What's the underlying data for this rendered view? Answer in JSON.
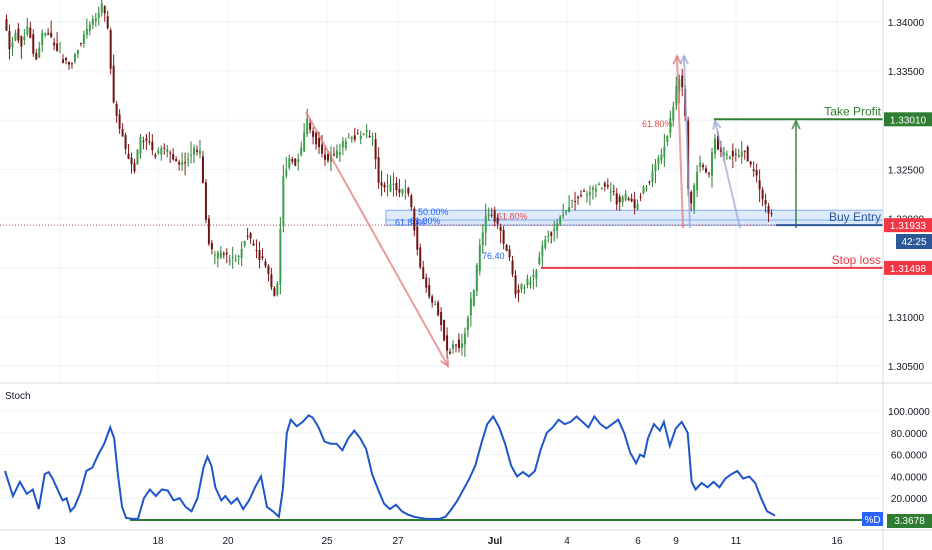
{
  "chart_data": [
    {
      "type": "candlestick",
      "title": "",
      "ylim": [
        1.3033,
        1.3458
      ],
      "y_ticks": [
        "1.30500",
        "1.31000",
        "1.31500",
        "1.32000",
        "1.32500",
        "1.33000",
        "1.33500",
        "1.34000"
      ],
      "x_ticks": [
        "13",
        "18",
        "20",
        "25",
        "27",
        "Jul",
        "4",
        "6",
        "9",
        "11",
        "16"
      ],
      "price_path": [
        [
          0,
          1.3405
        ],
        [
          6,
          1.3372
        ],
        [
          12,
          1.3392
        ],
        [
          18,
          1.3378
        ],
        [
          25,
          1.3395
        ],
        [
          32,
          1.3362
        ],
        [
          40,
          1.339
        ],
        [
          50,
          1.338
        ],
        [
          60,
          1.336
        ],
        [
          68,
          1.3355
        ],
        [
          75,
          1.3375
        ],
        [
          85,
          1.3395
        ],
        [
          92,
          1.3405
        ],
        [
          100,
          1.342
        ],
        [
          106,
          1.3388
        ],
        [
          110,
          1.332
        ],
        [
          118,
          1.329
        ],
        [
          125,
          1.326
        ],
        [
          132,
          1.3252
        ],
        [
          138,
          1.3282
        ],
        [
          145,
          1.3278
        ],
        [
          152,
          1.3265
        ],
        [
          160,
          1.3272
        ],
        [
          168,
          1.3268
        ],
        [
          176,
          1.3252
        ],
        [
          184,
          1.3258
        ],
        [
          192,
          1.327
        ],
        [
          198,
          1.3265
        ],
        [
          202,
          1.3225
        ],
        [
          206,
          1.3175
        ],
        [
          212,
          1.316
        ],
        [
          220,
          1.3165
        ],
        [
          228,
          1.3158
        ],
        [
          236,
          1.316
        ],
        [
          245,
          1.3185
        ],
        [
          255,
          1.3165
        ],
        [
          265,
          1.315
        ],
        [
          275,
          1.3115
        ],
        [
          278,
          1.3175
        ],
        [
          282,
          1.3245
        ],
        [
          288,
          1.326
        ],
        [
          295,
          1.3255
        ],
        [
          300,
          1.327
        ],
        [
          306,
          1.33
        ],
        [
          312,
          1.3285
        ],
        [
          318,
          1.3272
        ],
        [
          326,
          1.326
        ],
        [
          334,
          1.3265
        ],
        [
          342,
          1.3275
        ],
        [
          350,
          1.3285
        ],
        [
          358,
          1.3282
        ],
        [
          366,
          1.3288
        ],
        [
          372,
          1.328
        ],
        [
          378,
          1.324
        ],
        [
          385,
          1.3228
        ],
        [
          392,
          1.3235
        ],
        [
          400,
          1.3225
        ],
        [
          406,
          1.323
        ],
        [
          412,
          1.3205
        ],
        [
          418,
          1.316
        ],
        [
          424,
          1.3135
        ],
        [
          430,
          1.3118
        ],
        [
          436,
          1.311
        ],
        [
          442,
          1.309
        ],
        [
          448,
          1.306
        ],
        [
          455,
          1.3075
        ],
        [
          462,
          1.307
        ],
        [
          468,
          1.31
        ],
        [
          474,
          1.313
        ],
        [
          480,
          1.317
        ],
        [
          486,
          1.32
        ],
        [
          492,
          1.3205
        ],
        [
          498,
          1.3195
        ],
        [
          504,
          1.3175
        ],
        [
          510,
          1.316
        ],
        [
          516,
          1.3125
        ],
        [
          522,
          1.313
        ],
        [
          528,
          1.3135
        ],
        [
          534,
          1.314
        ],
        [
          540,
          1.316
        ],
        [
          546,
          1.318
        ],
        [
          552,
          1.3185
        ],
        [
          558,
          1.3195
        ],
        [
          564,
          1.3205
        ],
        [
          570,
          1.3215
        ],
        [
          576,
          1.322
        ],
        [
          582,
          1.3225
        ],
        [
          590,
          1.3228
        ],
        [
          598,
          1.3232
        ],
        [
          606,
          1.3235
        ],
        [
          614,
          1.3225
        ],
        [
          620,
          1.3215
        ],
        [
          628,
          1.3225
        ],
        [
          636,
          1.3212
        ],
        [
          644,
          1.323
        ],
        [
          652,
          1.324
        ],
        [
          658,
          1.3255
        ],
        [
          664,
          1.3268
        ],
        [
          670,
          1.329
        ],
        [
          676,
          1.332
        ],
        [
          680,
          1.3345
        ],
        [
          684,
          1.3335
        ],
        [
          688,
          1.329
        ],
        [
          691,
          1.32
        ],
        [
          696,
          1.323
        ],
        [
          700,
          1.3255
        ],
        [
          706,
          1.325
        ],
        [
          712,
          1.3245
        ],
        [
          716,
          1.3285
        ],
        [
          722,
          1.3268
        ],
        [
          728,
          1.3262
        ],
        [
          734,
          1.3268
        ],
        [
          740,
          1.3262
        ],
        [
          746,
          1.3272
        ],
        [
          752,
          1.3255
        ],
        [
          758,
          1.3245
        ],
        [
          764,
          1.3218
        ],
        [
          770,
          1.321
        ],
        [
          776,
          1.3197
        ]
      ],
      "reference_line": {
        "value": 1.31933
      },
      "zones": [
        {
          "label": "50.00%",
          "top": 1.32085,
          "bottom": 1.31933,
          "color": "#2962ff"
        },
        {
          "label": "61.80%",
          "top": 1.31985,
          "bottom": 1.31933,
          "color": "#2962ff"
        }
      ],
      "fib_labels": [
        {
          "label": "61.80%",
          "value": 1.3296,
          "color": "#e0514a"
        },
        {
          "label": "61.80%",
          "value": 1.3196,
          "color": "#2962ff"
        },
        {
          "label": "61.80%",
          "value": 1.3202,
          "color": "#e0514a"
        },
        {
          "label": "76.40",
          "value": 1.3162,
          "color": "#2962ff"
        }
      ],
      "levels": [
        {
          "name": "Take Profit",
          "value": 1.3301,
          "price_label": "1.33010",
          "color": "#2e7d32"
        },
        {
          "name": "Buy Entry",
          "value": 1.31933,
          "price_label": "1.31933",
          "color": "#2b5797"
        },
        {
          "name": "Stop loss",
          "value": 1.31498,
          "price_label": "1.31498",
          "color": "#f23645"
        }
      ],
      "countdown": "42:25"
    },
    {
      "type": "line",
      "title": "Stoch",
      "ylim": [
        0,
        100
      ],
      "y_ticks": [
        "20.0000",
        "40.0000",
        "60.0000",
        "80.0000",
        "100.0000"
      ],
      "series": [
        {
          "name": "%D",
          "color": "#1e56c8",
          "current_value": "3.3678",
          "points": [
            [
              0,
              45
            ],
            [
              8,
              22
            ],
            [
              15,
              35
            ],
            [
              22,
              24
            ],
            [
              28,
              28
            ],
            [
              34,
              10
            ],
            [
              40,
              42
            ],
            [
              44,
              44
            ],
            [
              48,
              38
            ],
            [
              52,
              30
            ],
            [
              58,
              18
            ],
            [
              62,
              20
            ],
            [
              66,
              8
            ],
            [
              70,
              12
            ],
            [
              76,
              25
            ],
            [
              82,
              45
            ],
            [
              88,
              48
            ],
            [
              94,
              60
            ],
            [
              100,
              70
            ],
            [
              106,
              85
            ],
            [
              110,
              75
            ],
            [
              114,
              40
            ],
            [
              118,
              12
            ],
            [
              122,
              2
            ],
            [
              128,
              1
            ],
            [
              134,
              1
            ],
            [
              140,
              20
            ],
            [
              146,
              28
            ],
            [
              152,
              22
            ],
            [
              158,
              28
            ],
            [
              164,
              27
            ],
            [
              170,
              18
            ],
            [
              176,
              20
            ],
            [
              182,
              12
            ],
            [
              188,
              8
            ],
            [
              194,
              20
            ],
            [
              200,
              48
            ],
            [
              204,
              58
            ],
            [
              208,
              50
            ],
            [
              212,
              30
            ],
            [
              218,
              18
            ],
            [
              222,
              22
            ],
            [
              228,
              15
            ],
            [
              234,
              20
            ],
            [
              240,
              10
            ],
            [
              246,
              18
            ],
            [
              252,
              30
            ],
            [
              258,
              40
            ],
            [
              264,
              12
            ],
            [
              270,
              8
            ],
            [
              276,
              3
            ],
            [
              280,
              28
            ],
            [
              284,
              80
            ],
            [
              288,
              92
            ],
            [
              294,
              86
            ],
            [
              300,
              90
            ],
            [
              306,
              96
            ],
            [
              310,
              94
            ],
            [
              316,
              85
            ],
            [
              322,
              72
            ],
            [
              328,
              70
            ],
            [
              334,
              70
            ],
            [
              340,
              64
            ],
            [
              346,
              75
            ],
            [
              352,
              82
            ],
            [
              358,
              75
            ],
            [
              364,
              65
            ],
            [
              370,
              42
            ],
            [
              376,
              28
            ],
            [
              382,
              15
            ],
            [
              388,
              10
            ],
            [
              394,
              14
            ],
            [
              400,
              8
            ],
            [
              406,
              5
            ],
            [
              412,
              3
            ],
            [
              418,
              2
            ],
            [
              424,
              1
            ],
            [
              430,
              1
            ],
            [
              438,
              1
            ],
            [
              444,
              3
            ],
            [
              450,
              10
            ],
            [
              456,
              18
            ],
            [
              462,
              28
            ],
            [
              468,
              38
            ],
            [
              474,
              50
            ],
            [
              480,
              70
            ],
            [
              486,
              88
            ],
            [
              492,
              95
            ],
            [
              498,
              85
            ],
            [
              504,
              70
            ],
            [
              510,
              50
            ],
            [
              516,
              40
            ],
            [
              522,
              44
            ],
            [
              528,
              40
            ],
            [
              534,
              45
            ],
            [
              540,
              65
            ],
            [
              546,
              80
            ],
            [
              552,
              85
            ],
            [
              558,
              92
            ],
            [
              564,
              88
            ],
            [
              570,
              90
            ],
            [
              576,
              95
            ],
            [
              582,
              90
            ],
            [
              588,
              85
            ],
            [
              594,
              95
            ],
            [
              600,
              88
            ],
            [
              606,
              84
            ],
            [
              612,
              88
            ],
            [
              618,
              92
            ],
            [
              624,
              80
            ],
            [
              630,
              62
            ],
            [
              636,
              52
            ],
            [
              640,
              60
            ],
            [
              644,
              58
            ],
            [
              648,
              75
            ],
            [
              654,
              88
            ],
            [
              660,
              82
            ],
            [
              664,
              90
            ],
            [
              670,
              68
            ],
            [
              676,
              84
            ],
            [
              682,
              90
            ],
            [
              688,
              80
            ],
            [
              692,
              35
            ],
            [
              696,
              28
            ],
            [
              702,
              34
            ],
            [
              708,
              30
            ],
            [
              714,
              35
            ],
            [
              720,
              30
            ],
            [
              726,
              38
            ],
            [
              732,
              42
            ],
            [
              738,
              45
            ],
            [
              744,
              38
            ],
            [
              750,
              40
            ],
            [
              756,
              34
            ],
            [
              762,
              20
            ],
            [
              768,
              8
            ],
            [
              776,
              4
            ]
          ]
        }
      ],
      "baseline": {
        "value": 0.0,
        "color": "#2e7d32"
      }
    }
  ]
}
